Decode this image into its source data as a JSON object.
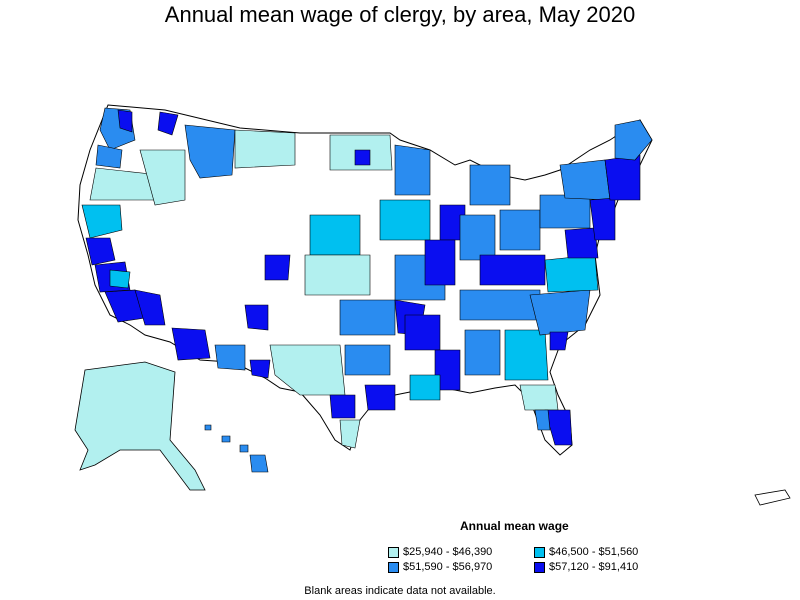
{
  "title": "Annual mean wage of clergy, by area, May 2020",
  "legend": {
    "title": "Annual mean wage",
    "items": [
      {
        "label": "$25,940 - $46,390",
        "color": "#b2f0ef"
      },
      {
        "label": "$46,500 - $51,560",
        "color": "#00c0f0"
      },
      {
        "label": "$51,590 - $56,970",
        "color": "#2a8cf0"
      },
      {
        "label": "$57,120 - $91,410",
        "color": "#0a0ef0"
      }
    ]
  },
  "footnote": "Blank areas indicate data not available."
}
